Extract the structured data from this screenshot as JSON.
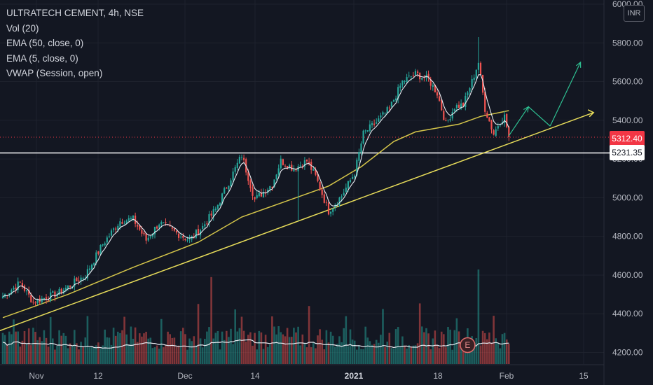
{
  "legend": {
    "title": "ULTRATECH CEMENT, 4h, NSE",
    "studies": [
      "Vol (20)",
      "EMA (50, close, 0)",
      "EMA (5, close, 0)",
      "VWAP (Session, open)"
    ]
  },
  "currency": "INR",
  "price_labels": {
    "last": "5312.40",
    "level": "5231.35"
  },
  "earnings_marker": "E",
  "colors": {
    "background": "#131722",
    "up": "#26a69a",
    "down": "#ef5350",
    "ema50": "#d4c54a",
    "ema5": "#e6e9ef",
    "trend": "#e8dd5a",
    "arrow": "#2ebf91",
    "volume_avg": "#e6e9ef"
  },
  "chart_data": {
    "type": "candlestick",
    "title": "ULTRATECH CEMENT, 4h, NSE",
    "x_ticks": [
      "Nov",
      "12",
      "Dec",
      "14",
      "2021",
      "18",
      "Feb",
      "15"
    ],
    "y_ticks": [
      "6000.00",
      "5800.00",
      "5600.00",
      "5400.00",
      "5200.00",
      "5000.00",
      "4800.00",
      "4600.00",
      "4400.00",
      "4200.00"
    ],
    "ylim": [
      4185,
      6010
    ],
    "anchors": [
      [
        0,
        4490
      ],
      [
        8,
        4560
      ],
      [
        14,
        4460
      ],
      [
        26,
        4510
      ],
      [
        38,
        4600
      ],
      [
        46,
        4760
      ],
      [
        54,
        4880
      ],
      [
        60,
        4890
      ],
      [
        66,
        4780
      ],
      [
        72,
        4870
      ],
      [
        78,
        4830
      ],
      [
        86,
        4780
      ],
      [
        92,
        4850
      ],
      [
        98,
        4940
      ],
      [
        104,
        5080
      ],
      [
        110,
        5220
      ],
      [
        116,
        4990
      ],
      [
        124,
        5070
      ],
      [
        128,
        5190
      ],
      [
        134,
        5150
      ],
      [
        140,
        5190
      ],
      [
        144,
        5110
      ],
      [
        150,
        4930
      ],
      [
        156,
        5010
      ],
      [
        162,
        5130
      ],
      [
        166,
        5330
      ],
      [
        172,
        5390
      ],
      [
        178,
        5460
      ],
      [
        184,
        5600
      ],
      [
        190,
        5640
      ],
      [
        196,
        5610
      ],
      [
        200,
        5540
      ],
      [
        204,
        5380
      ],
      [
        208,
        5470
      ],
      [
        212,
        5480
      ],
      [
        216,
        5600
      ],
      [
        219,
        5700
      ],
      [
        222,
        5460
      ],
      [
        226,
        5330
      ],
      [
        229,
        5400
      ],
      [
        231,
        5420
      ],
      [
        233,
        5312.4
      ]
    ],
    "horizontal_level": 5231.35,
    "last_price": 5312.4,
    "ema50_points": [
      [
        0,
        4380
      ],
      [
        30,
        4500
      ],
      [
        60,
        4640
      ],
      [
        90,
        4770
      ],
      [
        110,
        4900
      ],
      [
        130,
        4980
      ],
      [
        150,
        5060
      ],
      [
        165,
        5160
      ],
      [
        180,
        5290
      ],
      [
        190,
        5340
      ],
      [
        200,
        5360
      ],
      [
        210,
        5380
      ],
      [
        220,
        5420
      ],
      [
        233,
        5450
      ]
    ],
    "trendline": {
      "from": [
        -2,
        4310
      ],
      "to": [
        272,
        5440
      ]
    },
    "projection": [
      [
        233,
        5320
      ],
      [
        242,
        5470
      ],
      [
        252,
        5370
      ],
      [
        266,
        5700
      ]
    ],
    "volume": {
      "scale_note": "relative",
      "spike_index": 219
    }
  }
}
